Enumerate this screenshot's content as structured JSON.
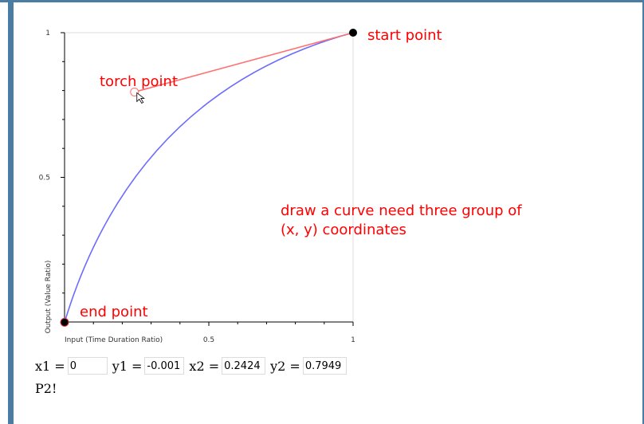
{
  "chart_data": {
    "type": "line",
    "xlabel": "Input (Time Duration Ratio)",
    "ylabel": "Output (Value Ratio)",
    "xlim": [
      0,
      1
    ],
    "ylim": [
      0,
      1
    ],
    "x_tick_labels": [
      "0.5",
      "1"
    ],
    "y_tick_labels": [
      "1",
      "0.5"
    ],
    "grid": false,
    "control_points": {
      "start": {
        "x": 1,
        "y": 1
      },
      "torch": {
        "x": 0.2424,
        "y": 0.7949
      },
      "end": {
        "x": 0,
        "y": -0.001
      }
    },
    "series_color": "#6b6bff",
    "handle_color": "#ff7070"
  },
  "annotations": {
    "start_point": "start point",
    "torch_point": "torch point",
    "end_point": "end point",
    "note_line1": "draw a curve need three group of",
    "note_line2": "(x, y) coordinates"
  },
  "controls": {
    "x1_label": "x1 =",
    "x1_value": "0",
    "y1_label": "y1 =",
    "y1_value": "-0.001",
    "x2_label": "x2 =",
    "x2_value": "0.2424",
    "y2_label": "y2 =",
    "y2_value": "0.7949"
  },
  "status_text": "P2!"
}
